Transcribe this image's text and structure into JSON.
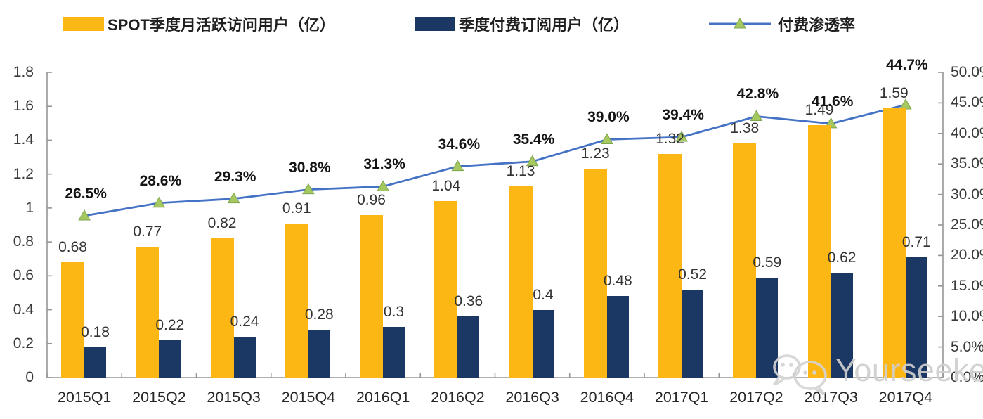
{
  "watermark": {
    "text": "Yourseeker",
    "icon": "wechat-icon"
  },
  "legend": {
    "items": [
      {
        "label": "SPOT季度月活跃访问用户（亿）",
        "swatch": "yellow-bar-swatch"
      },
      {
        "label": "季度付费订阅用户（亿）",
        "swatch": "navy-bar-swatch"
      },
      {
        "label": "付费渗透率",
        "swatch": "line-marker-swatch"
      }
    ]
  },
  "chart_data": {
    "type": "bar",
    "subtype": "grouped-bars-with-line",
    "categories": [
      "2015Q1",
      "2015Q2",
      "2015Q3",
      "2015Q4",
      "2016Q1",
      "2016Q2",
      "2016Q3",
      "2016Q4",
      "2017Q1",
      "2017Q2",
      "2017Q3",
      "2017Q4"
    ],
    "series": [
      {
        "name": "SPOT季度月活跃访问用户（亿）",
        "type": "bar",
        "axis": "left",
        "color": "#FCB714",
        "values": [
          0.68,
          0.77,
          0.82,
          0.91,
          0.96,
          1.04,
          1.13,
          1.23,
          1.32,
          1.38,
          1.49,
          1.59
        ],
        "labels": [
          "0.68",
          "0.77",
          "0.82",
          "0.91",
          "0.96",
          "1.04",
          "1.13",
          "1.23",
          "1.32",
          "1.38",
          "1.49",
          "1.59"
        ]
      },
      {
        "name": "季度付费订阅用户（亿）",
        "type": "bar",
        "axis": "left",
        "color": "#1B3764",
        "values": [
          0.18,
          0.22,
          0.24,
          0.28,
          0.3,
          0.36,
          0.4,
          0.48,
          0.52,
          0.59,
          0.62,
          0.71
        ],
        "labels": [
          "0.18",
          "0.22",
          "0.24",
          "0.28",
          "0.3",
          "0.36",
          "0.4",
          "0.48",
          "0.52",
          "0.59",
          "0.62",
          "0.71"
        ]
      },
      {
        "name": "付费渗透率",
        "type": "line",
        "axis": "right",
        "color": "#4472C4",
        "marker": "triangle",
        "marker_fill": "#A5C861",
        "marker_stroke": "#7FA650",
        "values": [
          26.5,
          28.6,
          29.3,
          30.8,
          31.3,
          34.6,
          35.4,
          39.0,
          39.4,
          42.8,
          41.6,
          44.7
        ],
        "labels": [
          "26.5%",
          "28.6%",
          "29.3%",
          "30.8%",
          "31.3%",
          "34.6%",
          "35.4%",
          "39.0%",
          "39.4%",
          "42.8%",
          "41.6%",
          "44.7%"
        ]
      }
    ],
    "left_axis": {
      "min": 0,
      "max": 1.8,
      "tick_labels": [
        "0",
        "0.2",
        "0.4",
        "0.6",
        "0.8",
        "1",
        "1.2",
        "1.4",
        "1.6",
        "1.8"
      ]
    },
    "right_axis": {
      "min": 0,
      "max": 50,
      "tick_labels": [
        "0.0%",
        "5.0%",
        "10.0%",
        "15.0%",
        "20.0%",
        "25.0%",
        "30.0%",
        "35.0%",
        "40.0%",
        "45.0%",
        "50.0%"
      ]
    },
    "grid": false,
    "legend_position": "top",
    "axis_color": "#969696"
  }
}
